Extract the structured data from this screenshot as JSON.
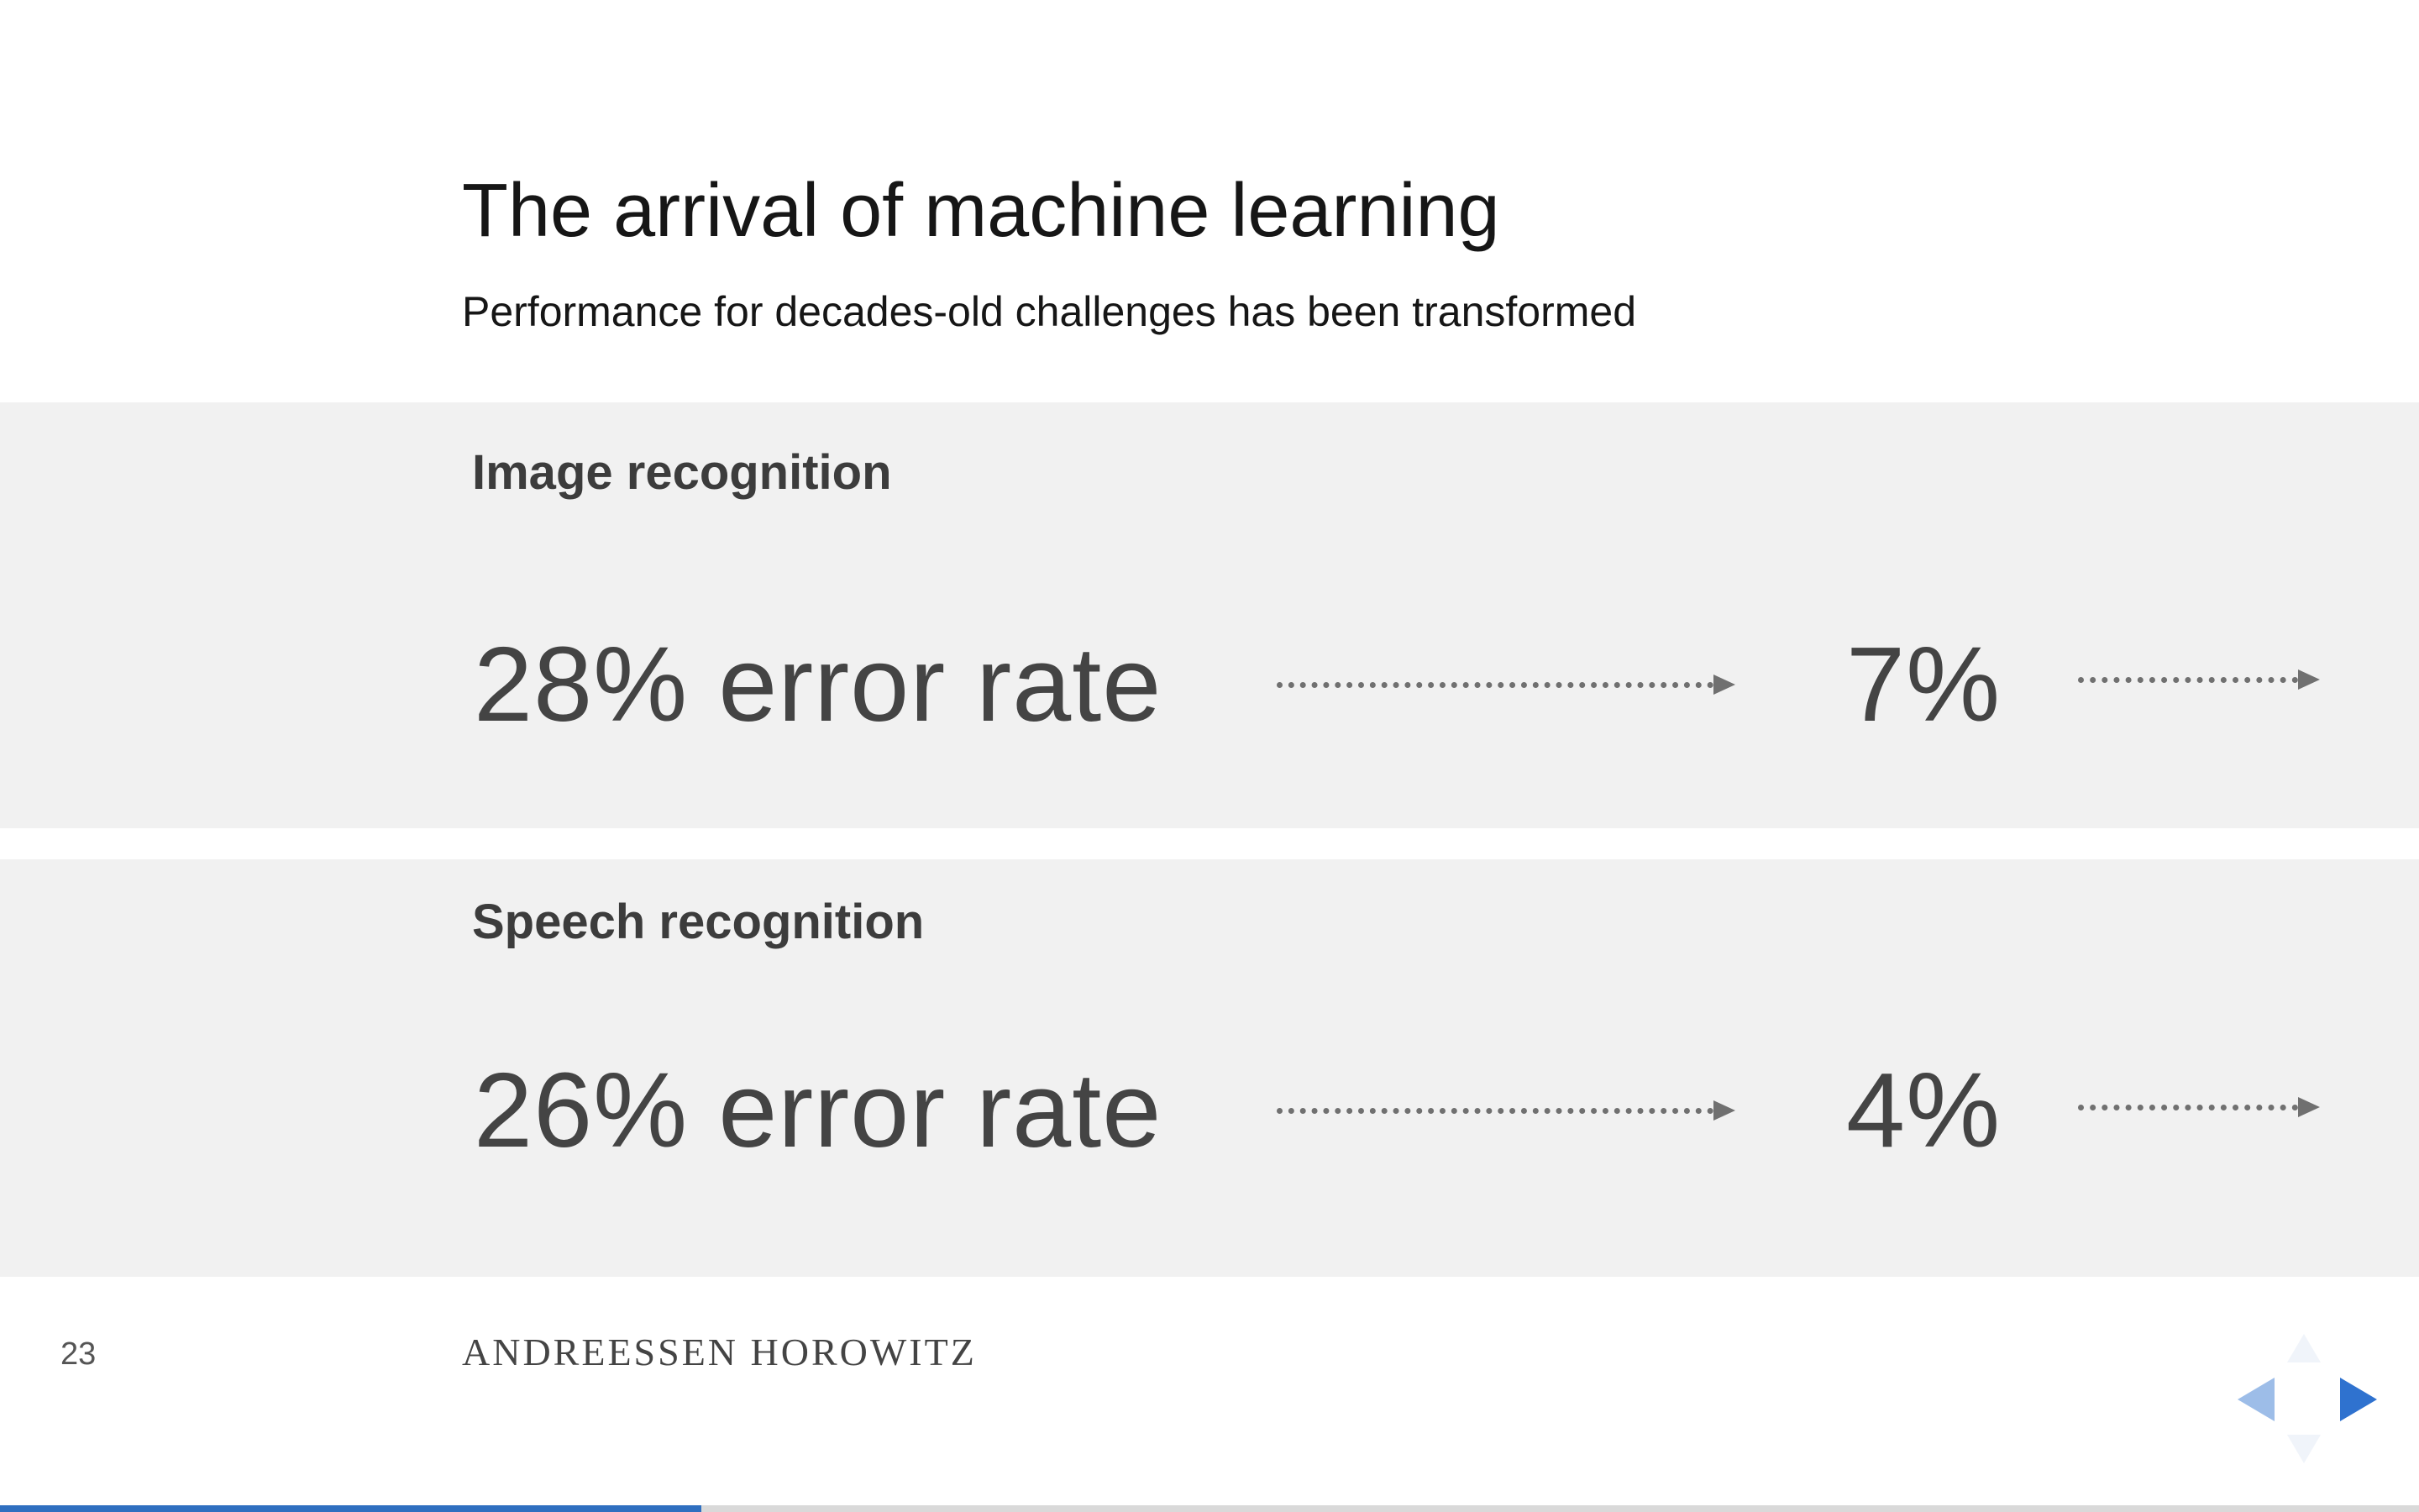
{
  "slide": {
    "title": "The arrival of machine learning",
    "subtitle": "Performance for decades-old challenges has been transformed",
    "sections": [
      {
        "label": "Image recognition",
        "before": "28% error rate",
        "after": "7%"
      },
      {
        "label": "Speech recognition",
        "before": "26% error rate",
        "after": "4%"
      }
    ]
  },
  "footer": {
    "page_number": "23",
    "brand": "ANDREESSEN HOROWITZ"
  },
  "navigation": {
    "prev_icon": "triangle-left-icon",
    "next_icon": "triangle-right-icon",
    "up_icon": "triangle-up-icon",
    "down_icon": "triangle-down-icon"
  },
  "progress": {
    "fraction": 0.29,
    "color": "#2f6fc0"
  },
  "colors": {
    "band_background": "#f1f1f1",
    "accent": "#2f72cf"
  }
}
